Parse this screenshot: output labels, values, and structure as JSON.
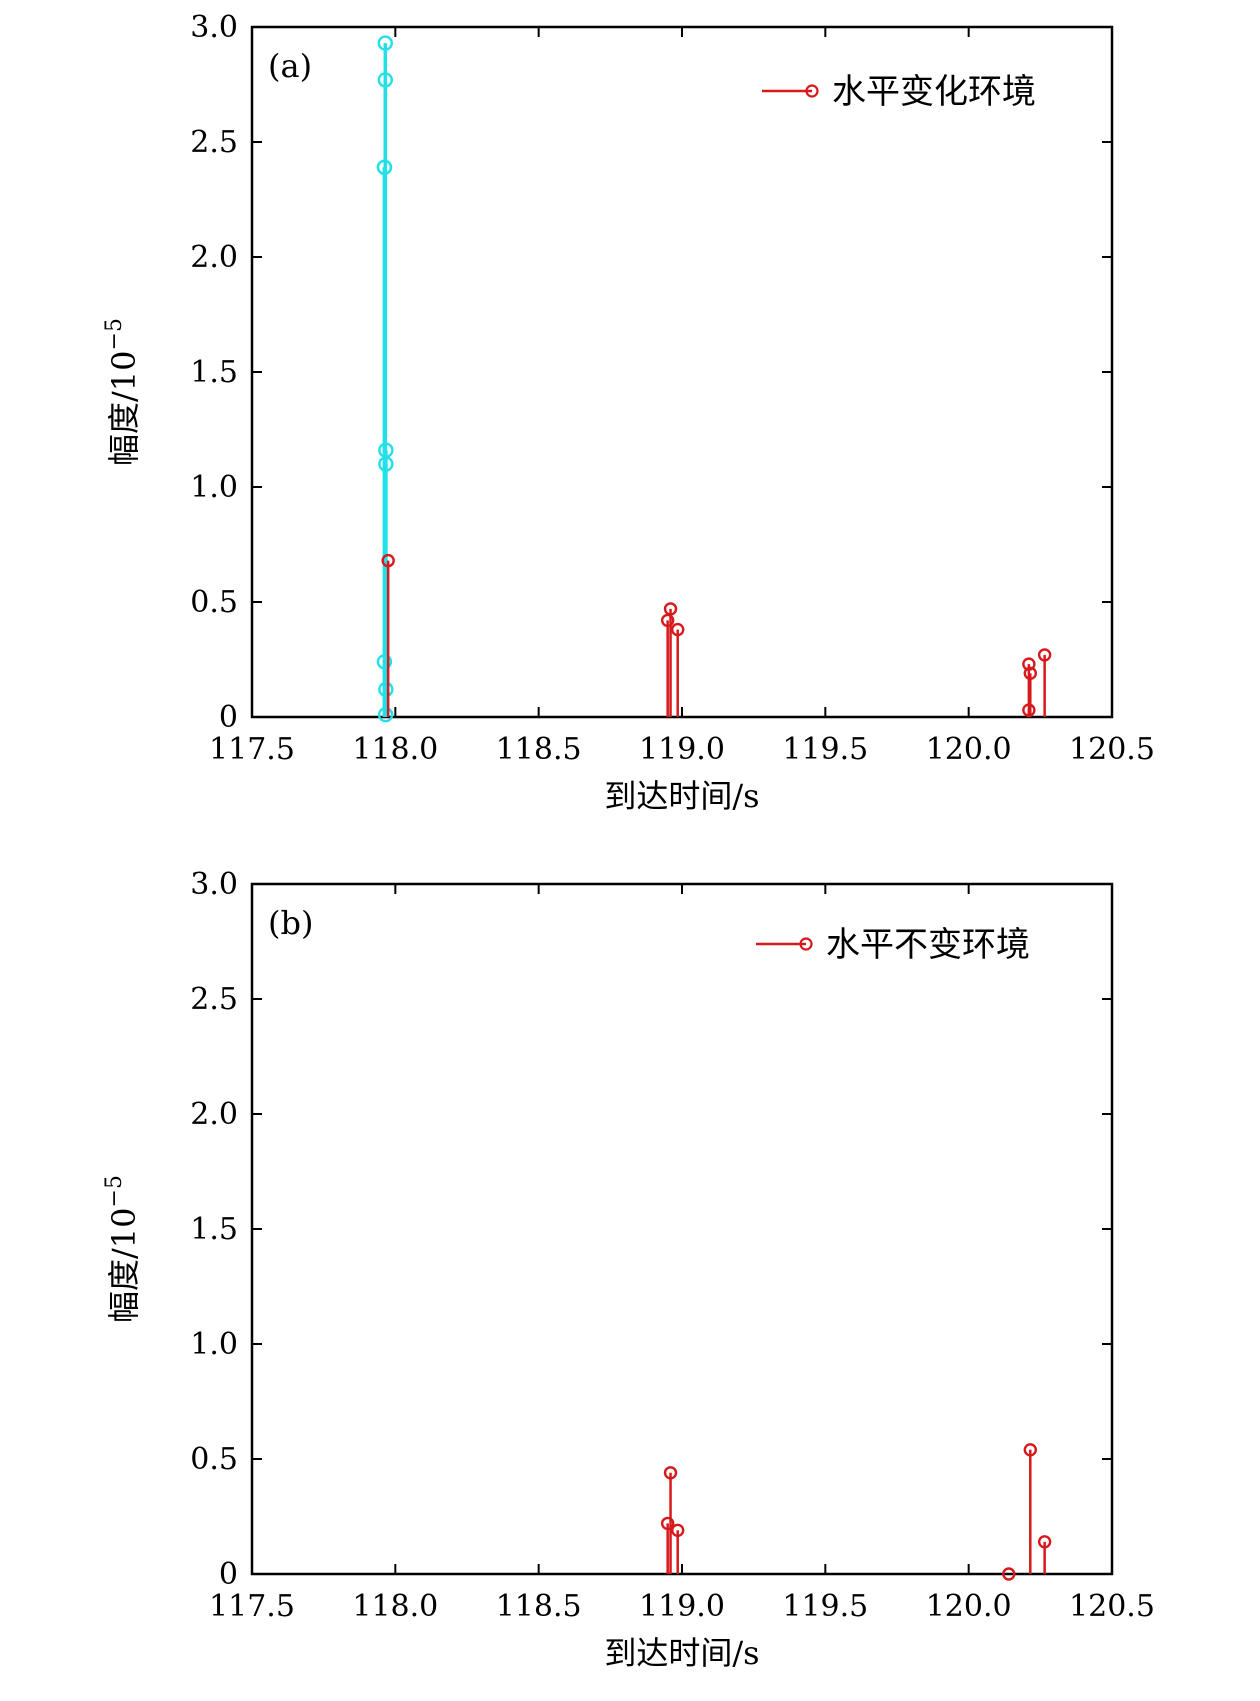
{
  "chart_data": [
    {
      "type": "scatter",
      "style": "stem",
      "panel_label": "(a)",
      "xlabel": "到达时间/s",
      "ylabel": "幅度/10",
      "ylabel_exponent": "−5",
      "xlim": [
        117.5,
        120.5
      ],
      "ylim": [
        0,
        3.0
      ],
      "xticks": [
        "117.5",
        "118.0",
        "118.5",
        "119.0",
        "119.5",
        "120.0",
        "120.5"
      ],
      "yticks": [
        "0",
        "0.5",
        "1.0",
        "1.5",
        "2.0",
        "2.5",
        "3.0"
      ],
      "grid": false,
      "legend_position": "top-right",
      "legend": [
        "水平变化环境"
      ],
      "series": [
        {
          "name": "",
          "color": "#22e0e8",
          "marker": "circle",
          "x": [
            117.965,
            117.965,
            117.962,
            117.962,
            117.967,
            117.967,
            117.962,
            117.967,
            117.966
          ],
          "y": [
            2.93,
            2.77,
            2.39,
            2.39,
            1.16,
            1.1,
            0.24,
            0.12,
            0.01
          ]
        },
        {
          "name": "水平变化环境",
          "color": "#d7191c",
          "marker": "circle",
          "x": [
            117.975,
            118.95,
            118.96,
            118.985,
            120.21,
            120.215,
            120.21,
            120.265
          ],
          "y": [
            0.68,
            0.42,
            0.47,
            0.38,
            0.23,
            0.19,
            0.03,
            0.27
          ]
        }
      ]
    },
    {
      "type": "scatter",
      "style": "stem",
      "panel_label": "(b)",
      "xlabel": "到达时间/s",
      "ylabel": "幅度/10",
      "ylabel_exponent": "−5",
      "xlim": [
        117.5,
        120.5
      ],
      "ylim": [
        0,
        3.0
      ],
      "xticks": [
        "117.5",
        "118.0",
        "118.5",
        "119.0",
        "119.5",
        "120.0",
        "120.5"
      ],
      "yticks": [
        "0",
        "0.5",
        "1.0",
        "1.5",
        "2.0",
        "2.5",
        "3.0"
      ],
      "grid": false,
      "legend_position": "top-right",
      "legend": [
        "水平不变环境"
      ],
      "series": [
        {
          "name": "水平不变环境",
          "color": "#d7191c",
          "marker": "circle",
          "x": [
            118.95,
            118.96,
            118.985,
            120.14,
            120.215,
            120.265
          ],
          "y": [
            0.22,
            0.44,
            0.19,
            0.0,
            0.54,
            0.14
          ]
        }
      ]
    }
  ]
}
